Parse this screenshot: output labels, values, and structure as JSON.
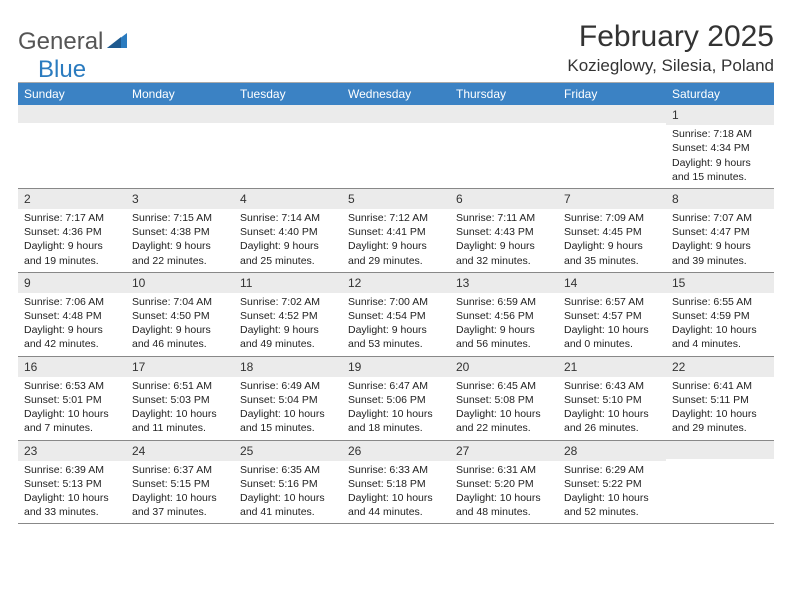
{
  "logo": {
    "text1": "General",
    "text2": "Blue",
    "color_general": "#555555",
    "color_blue": "#2a7bbf",
    "triangle_color": "#2a7bbf"
  },
  "title": "February 2025",
  "location": "Kozieglowy, Silesia, Poland",
  "header_bg": "#3b82c4",
  "daynum_bg": "#ebebeb",
  "weekdays": [
    "Sunday",
    "Monday",
    "Tuesday",
    "Wednesday",
    "Thursday",
    "Friday",
    "Saturday"
  ],
  "weeks": [
    [
      {
        "n": "",
        "sr": "",
        "ss": "",
        "dl1": "",
        "dl2": ""
      },
      {
        "n": "",
        "sr": "",
        "ss": "",
        "dl1": "",
        "dl2": ""
      },
      {
        "n": "",
        "sr": "",
        "ss": "",
        "dl1": "",
        "dl2": ""
      },
      {
        "n": "",
        "sr": "",
        "ss": "",
        "dl1": "",
        "dl2": ""
      },
      {
        "n": "",
        "sr": "",
        "ss": "",
        "dl1": "",
        "dl2": ""
      },
      {
        "n": "",
        "sr": "",
        "ss": "",
        "dl1": "",
        "dl2": ""
      },
      {
        "n": "1",
        "sr": "Sunrise: 7:18 AM",
        "ss": "Sunset: 4:34 PM",
        "dl1": "Daylight: 9 hours",
        "dl2": "and 15 minutes."
      }
    ],
    [
      {
        "n": "2",
        "sr": "Sunrise: 7:17 AM",
        "ss": "Sunset: 4:36 PM",
        "dl1": "Daylight: 9 hours",
        "dl2": "and 19 minutes."
      },
      {
        "n": "3",
        "sr": "Sunrise: 7:15 AM",
        "ss": "Sunset: 4:38 PM",
        "dl1": "Daylight: 9 hours",
        "dl2": "and 22 minutes."
      },
      {
        "n": "4",
        "sr": "Sunrise: 7:14 AM",
        "ss": "Sunset: 4:40 PM",
        "dl1": "Daylight: 9 hours",
        "dl2": "and 25 minutes."
      },
      {
        "n": "5",
        "sr": "Sunrise: 7:12 AM",
        "ss": "Sunset: 4:41 PM",
        "dl1": "Daylight: 9 hours",
        "dl2": "and 29 minutes."
      },
      {
        "n": "6",
        "sr": "Sunrise: 7:11 AM",
        "ss": "Sunset: 4:43 PM",
        "dl1": "Daylight: 9 hours",
        "dl2": "and 32 minutes."
      },
      {
        "n": "7",
        "sr": "Sunrise: 7:09 AM",
        "ss": "Sunset: 4:45 PM",
        "dl1": "Daylight: 9 hours",
        "dl2": "and 35 minutes."
      },
      {
        "n": "8",
        "sr": "Sunrise: 7:07 AM",
        "ss": "Sunset: 4:47 PM",
        "dl1": "Daylight: 9 hours",
        "dl2": "and 39 minutes."
      }
    ],
    [
      {
        "n": "9",
        "sr": "Sunrise: 7:06 AM",
        "ss": "Sunset: 4:48 PM",
        "dl1": "Daylight: 9 hours",
        "dl2": "and 42 minutes."
      },
      {
        "n": "10",
        "sr": "Sunrise: 7:04 AM",
        "ss": "Sunset: 4:50 PM",
        "dl1": "Daylight: 9 hours",
        "dl2": "and 46 minutes."
      },
      {
        "n": "11",
        "sr": "Sunrise: 7:02 AM",
        "ss": "Sunset: 4:52 PM",
        "dl1": "Daylight: 9 hours",
        "dl2": "and 49 minutes."
      },
      {
        "n": "12",
        "sr": "Sunrise: 7:00 AM",
        "ss": "Sunset: 4:54 PM",
        "dl1": "Daylight: 9 hours",
        "dl2": "and 53 minutes."
      },
      {
        "n": "13",
        "sr": "Sunrise: 6:59 AM",
        "ss": "Sunset: 4:56 PM",
        "dl1": "Daylight: 9 hours",
        "dl2": "and 56 minutes."
      },
      {
        "n": "14",
        "sr": "Sunrise: 6:57 AM",
        "ss": "Sunset: 4:57 PM",
        "dl1": "Daylight: 10 hours",
        "dl2": "and 0 minutes."
      },
      {
        "n": "15",
        "sr": "Sunrise: 6:55 AM",
        "ss": "Sunset: 4:59 PM",
        "dl1": "Daylight: 10 hours",
        "dl2": "and 4 minutes."
      }
    ],
    [
      {
        "n": "16",
        "sr": "Sunrise: 6:53 AM",
        "ss": "Sunset: 5:01 PM",
        "dl1": "Daylight: 10 hours",
        "dl2": "and 7 minutes."
      },
      {
        "n": "17",
        "sr": "Sunrise: 6:51 AM",
        "ss": "Sunset: 5:03 PM",
        "dl1": "Daylight: 10 hours",
        "dl2": "and 11 minutes."
      },
      {
        "n": "18",
        "sr": "Sunrise: 6:49 AM",
        "ss": "Sunset: 5:04 PM",
        "dl1": "Daylight: 10 hours",
        "dl2": "and 15 minutes."
      },
      {
        "n": "19",
        "sr": "Sunrise: 6:47 AM",
        "ss": "Sunset: 5:06 PM",
        "dl1": "Daylight: 10 hours",
        "dl2": "and 18 minutes."
      },
      {
        "n": "20",
        "sr": "Sunrise: 6:45 AM",
        "ss": "Sunset: 5:08 PM",
        "dl1": "Daylight: 10 hours",
        "dl2": "and 22 minutes."
      },
      {
        "n": "21",
        "sr": "Sunrise: 6:43 AM",
        "ss": "Sunset: 5:10 PM",
        "dl1": "Daylight: 10 hours",
        "dl2": "and 26 minutes."
      },
      {
        "n": "22",
        "sr": "Sunrise: 6:41 AM",
        "ss": "Sunset: 5:11 PM",
        "dl1": "Daylight: 10 hours",
        "dl2": "and 29 minutes."
      }
    ],
    [
      {
        "n": "23",
        "sr": "Sunrise: 6:39 AM",
        "ss": "Sunset: 5:13 PM",
        "dl1": "Daylight: 10 hours",
        "dl2": "and 33 minutes."
      },
      {
        "n": "24",
        "sr": "Sunrise: 6:37 AM",
        "ss": "Sunset: 5:15 PM",
        "dl1": "Daylight: 10 hours",
        "dl2": "and 37 minutes."
      },
      {
        "n": "25",
        "sr": "Sunrise: 6:35 AM",
        "ss": "Sunset: 5:16 PM",
        "dl1": "Daylight: 10 hours",
        "dl2": "and 41 minutes."
      },
      {
        "n": "26",
        "sr": "Sunrise: 6:33 AM",
        "ss": "Sunset: 5:18 PM",
        "dl1": "Daylight: 10 hours",
        "dl2": "and 44 minutes."
      },
      {
        "n": "27",
        "sr": "Sunrise: 6:31 AM",
        "ss": "Sunset: 5:20 PM",
        "dl1": "Daylight: 10 hours",
        "dl2": "and 48 minutes."
      },
      {
        "n": "28",
        "sr": "Sunrise: 6:29 AM",
        "ss": "Sunset: 5:22 PM",
        "dl1": "Daylight: 10 hours",
        "dl2": "and 52 minutes."
      },
      {
        "n": "",
        "sr": "",
        "ss": "",
        "dl1": "",
        "dl2": ""
      }
    ]
  ]
}
